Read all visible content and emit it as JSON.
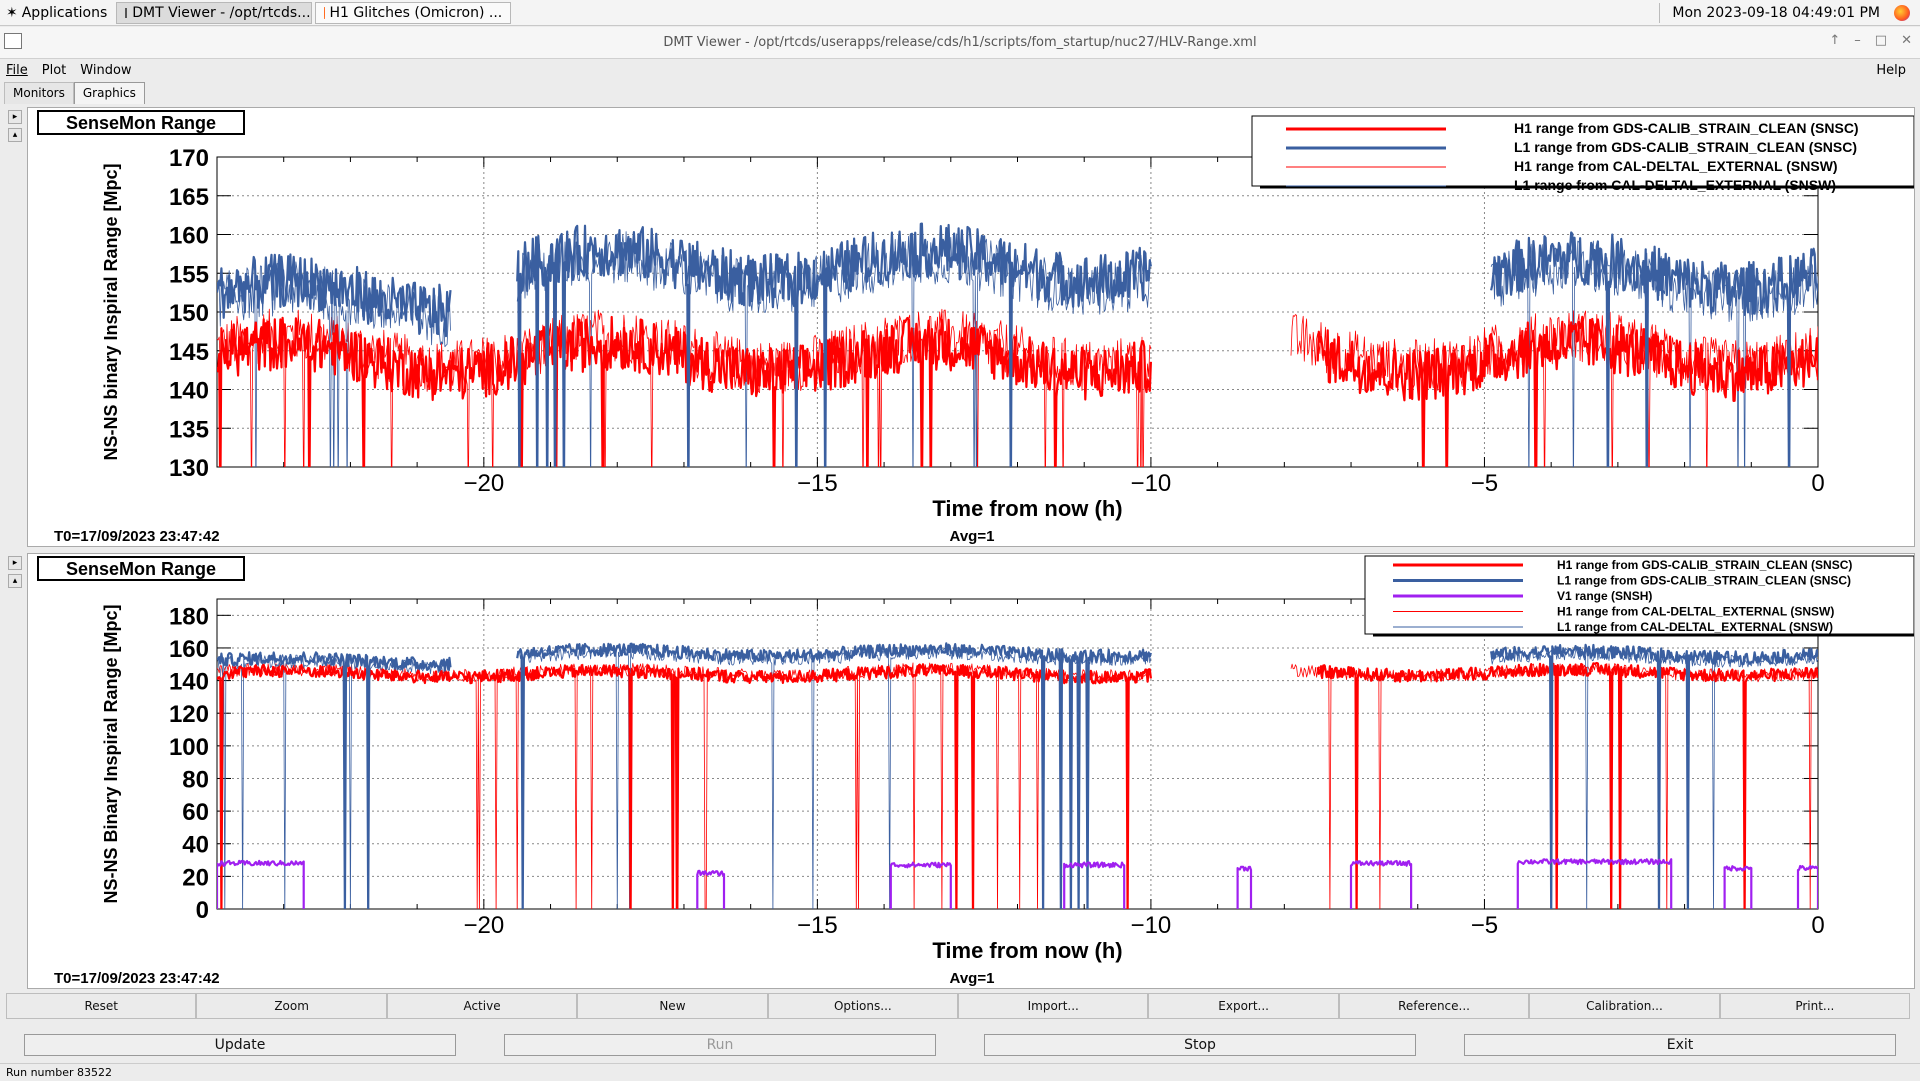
{
  "taskbar": {
    "apps_label": "Applications",
    "tasks": [
      {
        "label": "DMT Viewer - /opt/rtcds..."
      },
      {
        "label": "H1 Glitches (Omicron) ..."
      }
    ],
    "clock": "Mon 2023-09-18 04:49:01 PM"
  },
  "window": {
    "title": "DMT Viewer - /opt/rtcds/userapps/release/cds/h1/scripts/fom_startup/nuc27/HLV-Range.xml",
    "menu": {
      "file": "File",
      "plot": "Plot",
      "window": "Window",
      "help": "Help"
    },
    "tabs": [
      "Monitors",
      "Graphics"
    ]
  },
  "toolbar": [
    "Reset",
    "Zoom",
    "Active",
    "New",
    "Options...",
    "Import...",
    "Export...",
    "Reference...",
    "Calibration...",
    "Print..."
  ],
  "actions": {
    "update": "Update",
    "run": "Run",
    "stop": "Stop",
    "exit": "Exit"
  },
  "status": "Run number 83522",
  "colors": {
    "h1": "#ff0000",
    "l1": "#3a5fa0",
    "v1": "#a020f0"
  },
  "chart_data": [
    {
      "type": "line",
      "title": "SenseMon Range",
      "xlabel": "Time from now (h)",
      "ylabel": "NS-NS binary Inspiral Range [Mpc]",
      "xlim": [
        -24,
        0
      ],
      "ylim": [
        130,
        170
      ],
      "xticks": [
        -20,
        -15,
        -10,
        -5,
        0
      ],
      "yticks": [
        130,
        135,
        140,
        145,
        150,
        155,
        160,
        165,
        170
      ],
      "grid": true,
      "legend_position": "top-right",
      "footer_left": "T0=17/09/2023 23:47:42",
      "footer_center": "Avg=1",
      "series": [
        {
          "name": "H1 range from GDS-CALIB_STRAIN_CLEAN (SNSC)",
          "style": "thick",
          "color": "#ff0000",
          "segments": [
            [
              -24,
              -10,
              144
            ],
            [
              -7.5,
              0,
              144
            ]
          ]
        },
        {
          "name": "L1 range from GDS-CALIB_STRAIN_CLEAN (SNSC)",
          "style": "thick",
          "color": "#3a5fa0",
          "segments": [
            [
              -24,
              -20.5,
              152
            ],
            [
              -19.5,
              -10,
              156
            ],
            [
              -4.9,
              0,
              155
            ]
          ]
        },
        {
          "name": "H1 range from CAL-DELTAL_EXTERNAL (SNSW)",
          "style": "thin",
          "color": "#ff0000",
          "segments": [
            [
              -24,
              -10,
              145
            ],
            [
              -7.9,
              0,
              145
            ]
          ]
        },
        {
          "name": "L1 range from CAL-DELTAL_EXTERNAL (SNSW)",
          "style": "thin",
          "color": "#3a5fa0",
          "segments": [
            [
              -24,
              -20.5,
              151
            ],
            [
              -19.5,
              -10,
              155
            ],
            [
              -4.9,
              0,
              154
            ]
          ]
        }
      ]
    },
    {
      "type": "line",
      "title": "SenseMon Range",
      "xlabel": "Time from now (h)",
      "ylabel": "NS-NS Binary Inspiral Range [Mpc]",
      "xlim": [
        -24,
        0
      ],
      "ylim": [
        0,
        190
      ],
      "xticks": [
        -20,
        -15,
        -10,
        -5,
        0
      ],
      "yticks": [
        0,
        20,
        40,
        60,
        80,
        100,
        120,
        140,
        160,
        180
      ],
      "grid": true,
      "legend_position": "top-right",
      "footer_left": "T0=17/09/2023 23:47:42",
      "footer_center": "Avg=1",
      "series": [
        {
          "name": "H1 range from GDS-CALIB_STRAIN_CLEAN (SNSC)",
          "style": "thick",
          "color": "#ff0000",
          "segments": [
            [
              -24,
              -10,
              144
            ],
            [
              -7.5,
              0,
              145
            ]
          ]
        },
        {
          "name": "L1 range from GDS-CALIB_STRAIN_CLEAN (SNSC)",
          "style": "thick",
          "color": "#3a5fa0",
          "segments": [
            [
              -24,
              -20.5,
              152
            ],
            [
              -19.5,
              -10,
              157
            ],
            [
              -4.9,
              0,
              156
            ]
          ]
        },
        {
          "name": "V1 range (SNSH)",
          "style": "thick",
          "color": "#a020f0",
          "segments": [
            [
              -24,
              -22.7,
              28
            ],
            [
              -16.8,
              -16.4,
              22
            ],
            [
              -13.9,
              -13.0,
              27
            ],
            [
              -11.3,
              -10.4,
              27
            ],
            [
              -8.7,
              -8.5,
              25
            ],
            [
              -7.0,
              -6.1,
              28
            ],
            [
              -4.5,
              -2.2,
              29
            ],
            [
              -1.4,
              -1.0,
              25
            ],
            [
              -0.3,
              0,
              25
            ]
          ]
        },
        {
          "name": "H1 range from CAL-DELTAL_EXTERNAL (SNSW)",
          "style": "thin",
          "color": "#ff0000",
          "segments": [
            [
              -24,
              -10,
              145
            ],
            [
              -7.9,
              0,
              145
            ]
          ]
        },
        {
          "name": "L1 range from CAL-DELTAL_EXTERNAL (SNSW)",
          "style": "thin",
          "color": "#3a5fa0",
          "segments": [
            [
              -24,
              -20.5,
              150
            ],
            [
              -19.5,
              -10,
              155
            ],
            [
              -4.9,
              0,
              154
            ]
          ]
        }
      ]
    }
  ]
}
